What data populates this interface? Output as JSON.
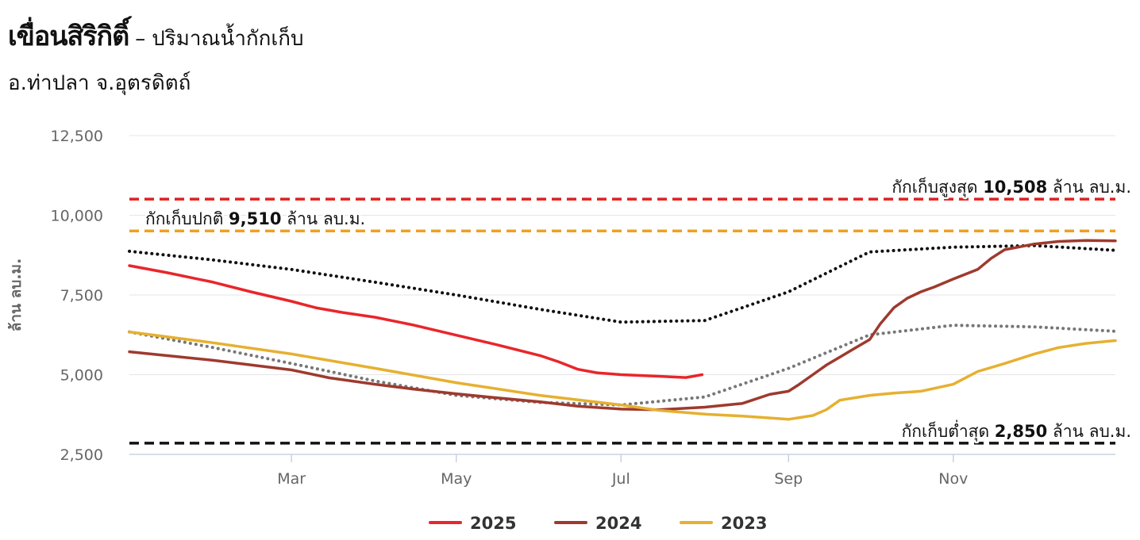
{
  "header": {
    "title": "เขื่อนสิริกิติ์",
    "separator": "–",
    "title_suffix": "ปริมาณน้ำกักเก็บ",
    "subtitle": "อ.ท่าปลา จ.อุตรดิตถ์"
  },
  "chart_data": {
    "type": "line",
    "ylabel": "ล้าน ลบ.ม.",
    "ylim": [
      2500,
      12500
    ],
    "yticks": [
      {
        "value": 2500,
        "label": "2,500"
      },
      {
        "value": 5000,
        "label": "5,000"
      },
      {
        "value": 7500,
        "label": "7,500"
      },
      {
        "value": 10000,
        "label": "10,000"
      },
      {
        "value": 12500,
        "label": "12,500"
      }
    ],
    "xlim": [
      "01-01",
      "12-31"
    ],
    "xticks": [
      {
        "date": "03-01",
        "label": "Mar"
      },
      {
        "date": "05-01",
        "label": "May"
      },
      {
        "date": "07-01",
        "label": "Jul"
      },
      {
        "date": "09-01",
        "label": "Sep"
      },
      {
        "date": "11-01",
        "label": "Nov"
      }
    ],
    "grid": true,
    "legend": "bottom",
    "reference_lines": [
      {
        "value": 10508,
        "label_prefix": "กักเก็บสูงสุด ",
        "label_value": "10,508",
        "label_suffix": " ล้าน ลบ.ม.",
        "color": "#e02020",
        "label_position": "right"
      },
      {
        "value": 9510,
        "label_prefix": "กักเก็บปกติ ",
        "label_value": "9,510",
        "label_suffix": " ล้าน ลบ.ม.",
        "color": "#f0a020",
        "label_position": "left"
      },
      {
        "value": 2850,
        "label_prefix": "กักเก็บต่ำสุด ",
        "label_value": "2,850",
        "label_suffix": " ล้าน ลบ.ม.",
        "color": "#111111",
        "label_position": "right"
      }
    ],
    "series": [
      {
        "name": "2025",
        "color": "#e8262b",
        "style": "solid",
        "legend": true,
        "points": [
          [
            "01-01",
            8420
          ],
          [
            "01-15",
            8200
          ],
          [
            "02-01",
            7900
          ],
          [
            "02-15",
            7600
          ],
          [
            "03-01",
            7300
          ],
          [
            "03-10",
            7100
          ],
          [
            "03-20",
            6950
          ],
          [
            "04-01",
            6800
          ],
          [
            "04-15",
            6560
          ],
          [
            "05-01",
            6240
          ],
          [
            "05-15",
            5960
          ],
          [
            "06-01",
            5600
          ],
          [
            "06-08",
            5400
          ],
          [
            "06-15",
            5170
          ],
          [
            "06-22",
            5060
          ],
          [
            "07-01",
            5000
          ],
          [
            "07-15",
            4950
          ],
          [
            "07-25",
            4910
          ],
          [
            "07-31",
            5000
          ]
        ]
      },
      {
        "name": "2024",
        "color": "#9e3a2e",
        "style": "solid",
        "legend": true,
        "points": [
          [
            "01-01",
            5720
          ],
          [
            "02-01",
            5450
          ],
          [
            "03-01",
            5150
          ],
          [
            "03-15",
            4900
          ],
          [
            "04-01",
            4700
          ],
          [
            "04-15",
            4550
          ],
          [
            "05-01",
            4400
          ],
          [
            "05-15",
            4280
          ],
          [
            "06-01",
            4150
          ],
          [
            "06-15",
            4010
          ],
          [
            "07-01",
            3920
          ],
          [
            "07-15",
            3900
          ],
          [
            "08-01",
            3980
          ],
          [
            "08-15",
            4100
          ],
          [
            "08-25",
            4380
          ],
          [
            "09-01",
            4480
          ],
          [
            "09-05",
            4700
          ],
          [
            "09-10",
            5000
          ],
          [
            "09-15",
            5300
          ],
          [
            "09-20",
            5550
          ],
          [
            "09-25",
            5800
          ],
          [
            "10-01",
            6100
          ],
          [
            "10-05",
            6600
          ],
          [
            "10-10",
            7100
          ],
          [
            "10-15",
            7400
          ],
          [
            "10-20",
            7600
          ],
          [
            "10-25",
            7750
          ],
          [
            "11-01",
            8000
          ],
          [
            "11-10",
            8300
          ],
          [
            "11-15",
            8650
          ],
          [
            "11-20",
            8920
          ],
          [
            "11-25",
            9000
          ],
          [
            "12-01",
            9100
          ],
          [
            "12-10",
            9180
          ],
          [
            "12-20",
            9210
          ],
          [
            "12-31",
            9200
          ]
        ]
      },
      {
        "name": "2023",
        "color": "#e6b030",
        "style": "solid",
        "legend": true,
        "points": [
          [
            "01-01",
            6340
          ],
          [
            "02-01",
            6000
          ],
          [
            "03-01",
            5650
          ],
          [
            "04-01",
            5200
          ],
          [
            "05-01",
            4750
          ],
          [
            "06-01",
            4350
          ],
          [
            "07-01",
            4050
          ],
          [
            "07-15",
            3880
          ],
          [
            "08-01",
            3760
          ],
          [
            "08-15",
            3700
          ],
          [
            "09-01",
            3600
          ],
          [
            "09-10",
            3720
          ],
          [
            "09-15",
            3900
          ],
          [
            "09-20",
            4200
          ],
          [
            "10-01",
            4350
          ],
          [
            "10-10",
            4420
          ],
          [
            "10-20",
            4480
          ],
          [
            "11-01",
            4700
          ],
          [
            "11-10",
            5100
          ],
          [
            "11-20",
            5350
          ],
          [
            "12-01",
            5650
          ],
          [
            "12-10",
            5850
          ],
          [
            "12-20",
            5980
          ],
          [
            "12-31",
            6070
          ]
        ]
      },
      {
        "name": "",
        "color": "#111111",
        "style": "dotted",
        "legend": false,
        "points": [
          [
            "01-01",
            8870
          ],
          [
            "02-01",
            8600
          ],
          [
            "03-01",
            8300
          ],
          [
            "04-01",
            7900
          ],
          [
            "05-01",
            7500
          ],
          [
            "06-01",
            7050
          ],
          [
            "07-01",
            6650
          ],
          [
            "08-01",
            6700
          ],
          [
            "09-01",
            7600
          ],
          [
            "10-01",
            8850
          ],
          [
            "11-01",
            9000
          ],
          [
            "12-01",
            9050
          ],
          [
            "12-31",
            8900
          ]
        ]
      },
      {
        "name": "",
        "color": "#777777",
        "style": "dotted",
        "legend": false,
        "points": [
          [
            "01-01",
            6340
          ],
          [
            "02-01",
            5850
          ],
          [
            "03-01",
            5350
          ],
          [
            "04-01",
            4800
          ],
          [
            "05-01",
            4350
          ],
          [
            "06-01",
            4130
          ],
          [
            "07-01",
            4050
          ],
          [
            "08-01",
            4300
          ],
          [
            "09-01",
            5200
          ],
          [
            "10-01",
            6250
          ],
          [
            "11-01",
            6550
          ],
          [
            "12-01",
            6500
          ],
          [
            "12-31",
            6360
          ]
        ]
      }
    ]
  }
}
